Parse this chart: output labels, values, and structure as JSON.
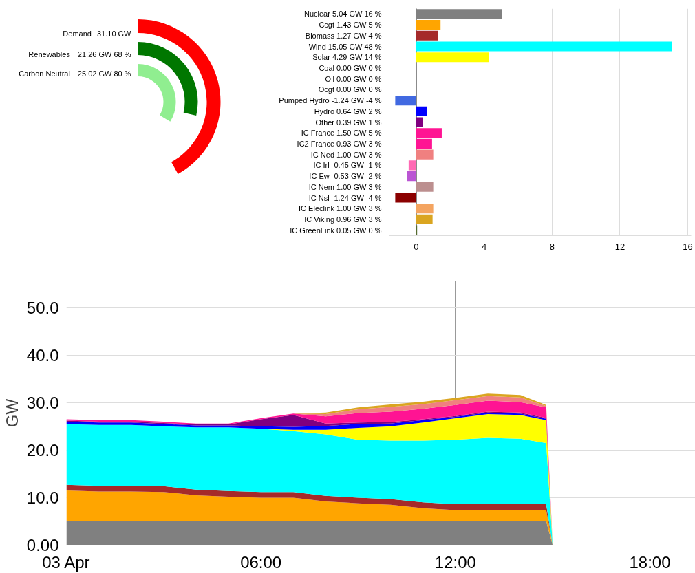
{
  "chart_data": [
    {
      "type": "other",
      "categories": [
        "Demand",
        "Renewables",
        "Carbon Neutral"
      ],
      "values": [
        31.1,
        21.26,
        25.02
      ],
      "value_labels": [
        "31.10 GW",
        "21.26 GW 68 %",
        "25.02 GW 80 %"
      ],
      "colors": [
        "#ff0000",
        "#007700",
        "#90ee90"
      ]
    },
    {
      "type": "bar",
      "orientation": "horizontal",
      "categories": [
        "Nuclear 5.04 GW 16 %",
        "Ccgt 1.43 GW 5 %",
        "Biomass 1.27 GW 4 %",
        "Wind 15.05 GW 48 %",
        "Solar 4.29 GW 14 %",
        "Coal 0.00 GW 0 %",
        "Oil 0.00 GW 0 %",
        "Ocgt 0.00 GW 0 %",
        "Pumped Hydro -1.24 GW -4 %",
        "Hydro 0.64 GW 2 %",
        "Other 0.39 GW 1 %",
        "IC France 1.50 GW 5 %",
        "IC2 France 0.93 GW 3 %",
        "IC Ned 1.00 GW 3 %",
        "IC Irl -0.45 GW -1 %",
        "IC Ew -0.53 GW -2 %",
        "IC Nem 1.00 GW 3 %",
        "IC Nsl -1.24 GW -4 %",
        "IC Eleclink 1.00 GW 3 %",
        "IC Viking 0.96 GW 3 %",
        "IC GreenLink 0.05 GW 0 %"
      ],
      "values": [
        5.04,
        1.43,
        1.27,
        15.05,
        4.29,
        0.0,
        0.0,
        0.0,
        -1.24,
        0.64,
        0.39,
        1.5,
        0.93,
        1.0,
        -0.45,
        -0.53,
        1.0,
        -1.24,
        1.0,
        0.96,
        0.05
      ],
      "colors": [
        "#808080",
        "#ffa500",
        "#a52a2a",
        "#00ffff",
        "#ffff00",
        "#000000",
        "#333333",
        "#555555",
        "#4169e1",
        "#0000ff",
        "#800080",
        "#ff1493",
        "#ff1493",
        "#f08080",
        "#ff69b4",
        "#ba55d3",
        "#bc8f8f",
        "#8b0000",
        "#f4a460",
        "#daa520",
        "#556b2f"
      ],
      "xlim": [
        -1.6,
        16.2
      ],
      "xticks": [
        0,
        4,
        8,
        12,
        16
      ],
      "grid": "x"
    },
    {
      "type": "area",
      "stacked": true,
      "x": [
        0,
        1,
        2,
        3,
        4,
        5,
        6,
        7,
        8,
        9,
        10,
        11,
        12,
        13,
        14,
        14.8,
        15.0
      ],
      "series": [
        {
          "color": "#808080",
          "values": [
            5,
            5,
            5,
            5,
            5,
            5,
            5,
            5,
            5,
            5,
            5,
            5,
            5,
            5,
            5,
            5,
            0
          ]
        },
        {
          "color": "#ffa500",
          "values": [
            6.5,
            6.3,
            6.3,
            6.2,
            5.5,
            5.2,
            5.0,
            5.0,
            4.2,
            3.8,
            3.5,
            2.8,
            2.4,
            2.4,
            2.4,
            2.4,
            0
          ]
        },
        {
          "color": "#a52a2a",
          "values": [
            1.2,
            1.2,
            1.2,
            1.2,
            1.2,
            1.2,
            1.2,
            1.2,
            1.2,
            1.2,
            1.2,
            1.2,
            1.2,
            1.2,
            1.2,
            1.2,
            0
          ]
        },
        {
          "color": "#00ffff",
          "values": [
            12.8,
            12.8,
            12.8,
            12.6,
            13.1,
            13.4,
            13.3,
            12.8,
            12.9,
            12.2,
            12.3,
            13.0,
            13.6,
            14.0,
            13.8,
            12.9,
            0
          ]
        },
        {
          "color": "#ffff00",
          "values": [
            0,
            0,
            0,
            0,
            0,
            0,
            0,
            0.3,
            1,
            2.5,
            3,
            3.8,
            4.5,
            5,
            5,
            4.8,
            0
          ]
        },
        {
          "color": "#0000ff",
          "values": [
            0.5,
            0.5,
            0.5,
            0.5,
            0.4,
            0.4,
            0.5,
            0.6,
            0.8,
            0.8,
            0.6,
            0.5,
            0.3,
            0.3,
            0.3,
            0.3,
            0
          ]
        },
        {
          "color": "#800080",
          "values": [
            0.2,
            0.2,
            0.2,
            0.2,
            0.2,
            0.2,
            1.5,
            2.5,
            0.5,
            0.3,
            0.3,
            0.2,
            0.2,
            0.2,
            0.2,
            0.2,
            0
          ]
        },
        {
          "color": "#ff1493",
          "values": [
            0.3,
            0.3,
            0.3,
            0.3,
            0.2,
            0.2,
            0.2,
            0.3,
            1.5,
            2.0,
            2.2,
            2.2,
            2.3,
            2.3,
            2.2,
            2.2,
            0
          ]
        },
        {
          "color": "#f08080",
          "values": [
            0,
            0,
            0,
            0,
            0,
            0,
            0,
            0,
            0.5,
            0.8,
            1,
            1,
            1,
            1,
            1,
            0.3,
            0
          ]
        },
        {
          "color": "#daa520",
          "values": [
            0,
            0,
            0,
            0,
            0,
            0,
            0,
            0,
            0.3,
            0.4,
            0.5,
            0.5,
            0.5,
            0.5,
            0.5,
            0.2,
            0
          ]
        }
      ],
      "xlim": [
        0,
        19.4
      ],
      "xticks": [
        {
          "value": 0,
          "label": "03 Apr"
        },
        {
          "value": 6,
          "label": "06:00"
        },
        {
          "value": 12,
          "label": "12:00"
        },
        {
          "value": 18,
          "label": "18:00"
        }
      ],
      "ylim": [
        0,
        55.6
      ],
      "yticks": [
        {
          "value": 0,
          "label": "0.00"
        },
        {
          "value": 10,
          "label": "10.0"
        },
        {
          "value": 20,
          "label": "20.0"
        },
        {
          "value": 30,
          "label": "30.0"
        },
        {
          "value": 40,
          "label": "40.0"
        },
        {
          "value": 50,
          "label": "50.0"
        }
      ],
      "ylabel": "GW",
      "grid": true
    }
  ]
}
